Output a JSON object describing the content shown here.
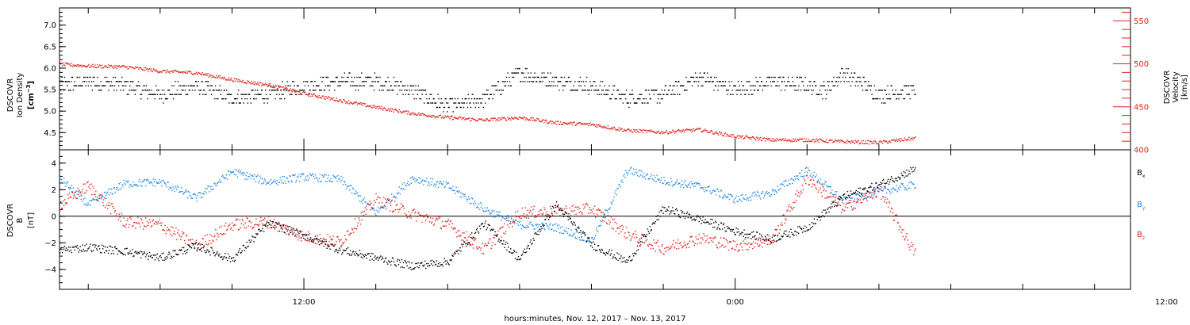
{
  "colors": {
    "black": "#000000",
    "red": "#e0201b",
    "blue": "#1e88e5"
  },
  "chart_data": [
    {
      "type": "scatter",
      "panel": "top",
      "left_axis": {
        "label_lines": [
          "DSCOVR",
          "Ion Density"
        ],
        "unit_base": "[cm",
        "unit_sup": "−3",
        "unit_close": "]",
        "ylim": [
          4.1,
          7.4
        ],
        "ticks": [
          4.5,
          5.0,
          5.5,
          6.0,
          6.5,
          7.0
        ],
        "tick_labels": [
          "4.5",
          "5.0",
          "5.5",
          "6.0",
          "6.5",
          "7.0"
        ]
      },
      "right_axis": {
        "label_lines": [
          "DSCOVR",
          "Velocity",
          "[km/s]"
        ],
        "ylim": [
          400,
          565
        ],
        "ticks": [
          400,
          450,
          500,
          550
        ],
        "tick_labels": [
          "400",
          "450",
          "500",
          "550"
        ],
        "color": "#e0201b"
      },
      "series": [
        {
          "color": "#000000",
          "axis": "left",
          "x": [
            5.2,
            6,
            7,
            8,
            9,
            10,
            11,
            12,
            13,
            14,
            15,
            16,
            17,
            18,
            19,
            20,
            21,
            22,
            23,
            24,
            25,
            26,
            26.5,
            27,
            28,
            29
          ],
          "y": [
            5.6,
            5.7,
            5.6,
            5.4,
            5.6,
            5.3,
            5.4,
            5.6,
            5.7,
            5.7,
            5.5,
            5.1,
            5.3,
            5.9,
            5.7,
            5.6,
            5.3,
            5.4,
            5.8,
            5.5,
            5.7,
            5.6,
            5.5,
            5.9,
            5.4,
            5.5
          ]
        },
        {
          "color": "#e0201b",
          "axis": "right",
          "x": [
            5.2,
            6,
            7,
            8,
            9,
            10,
            11,
            12,
            13,
            14,
            15,
            16,
            17,
            18,
            19,
            20,
            21,
            22,
            23,
            24,
            25,
            26,
            27,
            28,
            29
          ],
          "y": [
            500,
            498,
            497,
            492,
            490,
            482,
            476,
            466,
            458,
            450,
            443,
            438,
            435,
            438,
            432,
            430,
            423,
            421,
            424,
            416,
            412,
            412,
            410,
            409,
            414
          ]
        }
      ]
    },
    {
      "type": "scatter",
      "panel": "bottom",
      "left_axis": {
        "label_lines": [
          "DSCOVR",
          "B"
        ],
        "unit_base": "[nT]",
        "ylim": [
          -5.5,
          5.0
        ],
        "ticks": [
          -4,
          -2,
          0,
          2,
          4
        ],
        "tick_labels": [
          "−4",
          "−2",
          "0",
          "2",
          "4"
        ],
        "zero_line": true
      },
      "series": [
        {
          "name": "B",
          "sub": "x",
          "color": "#000000",
          "x": [
            5.2,
            6,
            7,
            8,
            9,
            10,
            11,
            12,
            13,
            14,
            15,
            16,
            17,
            18,
            19,
            20,
            21,
            22,
            23,
            24,
            25,
            26,
            27,
            28,
            29
          ],
          "y": [
            -2.5,
            -2.3,
            -2.6,
            -3.1,
            -2.2,
            -3.2,
            -0.5,
            -1.4,
            -2.5,
            -3.1,
            -3.7,
            -3.4,
            -0.5,
            -3.2,
            0.9,
            -2.1,
            -3.4,
            0.6,
            -0.2,
            -1.1,
            -1.7,
            -0.8,
            1.5,
            2.4,
            3.6
          ]
        },
        {
          "name": "B",
          "sub": "y",
          "color": "#1e88e5",
          "x": [
            5.2,
            6,
            7,
            8,
            9,
            10,
            11,
            12,
            13,
            14,
            15,
            16,
            17,
            18,
            19,
            20,
            21,
            22,
            23,
            24,
            25,
            26,
            27,
            28,
            29
          ],
          "y": [
            2.9,
            0.9,
            2.5,
            2.6,
            1.4,
            3.4,
            2.6,
            3.0,
            2.8,
            0.3,
            2.9,
            2.3,
            0.6,
            -0.6,
            -0.8,
            -1.8,
            3.5,
            2.7,
            2.3,
            1.3,
            1.8,
            3.5,
            1.2,
            1.9,
            2.4
          ]
        },
        {
          "name": "B",
          "sub": "z",
          "color": "#e0201b",
          "x": [
            5.2,
            6,
            7,
            8,
            9,
            10,
            11,
            12,
            13,
            14,
            15,
            16,
            17,
            18,
            19,
            20,
            21,
            22,
            23,
            24,
            25,
            26,
            27,
            28,
            29
          ],
          "y": [
            0.9,
            2.3,
            -0.4,
            -0.6,
            -2.2,
            -0.6,
            -0.4,
            -1.5,
            -1.9,
            1.3,
            0.2,
            -0.6,
            -2.5,
            0.3,
            0.4,
            0.6,
            -1.3,
            -2.4,
            -1.6,
            -2.2,
            -1.8,
            2.9,
            0.6,
            2.0,
            -2.8
          ]
        }
      ]
    }
  ],
  "x_axis": {
    "xlim": [
      5.2,
      35
    ],
    "major_ticks": [
      12,
      24,
      36
    ],
    "major_labels": [
      "12:00",
      "0:00",
      "12:00"
    ],
    "title": "hours:minutes, Nov. 12, 2017 – Nov. 13, 2017"
  }
}
